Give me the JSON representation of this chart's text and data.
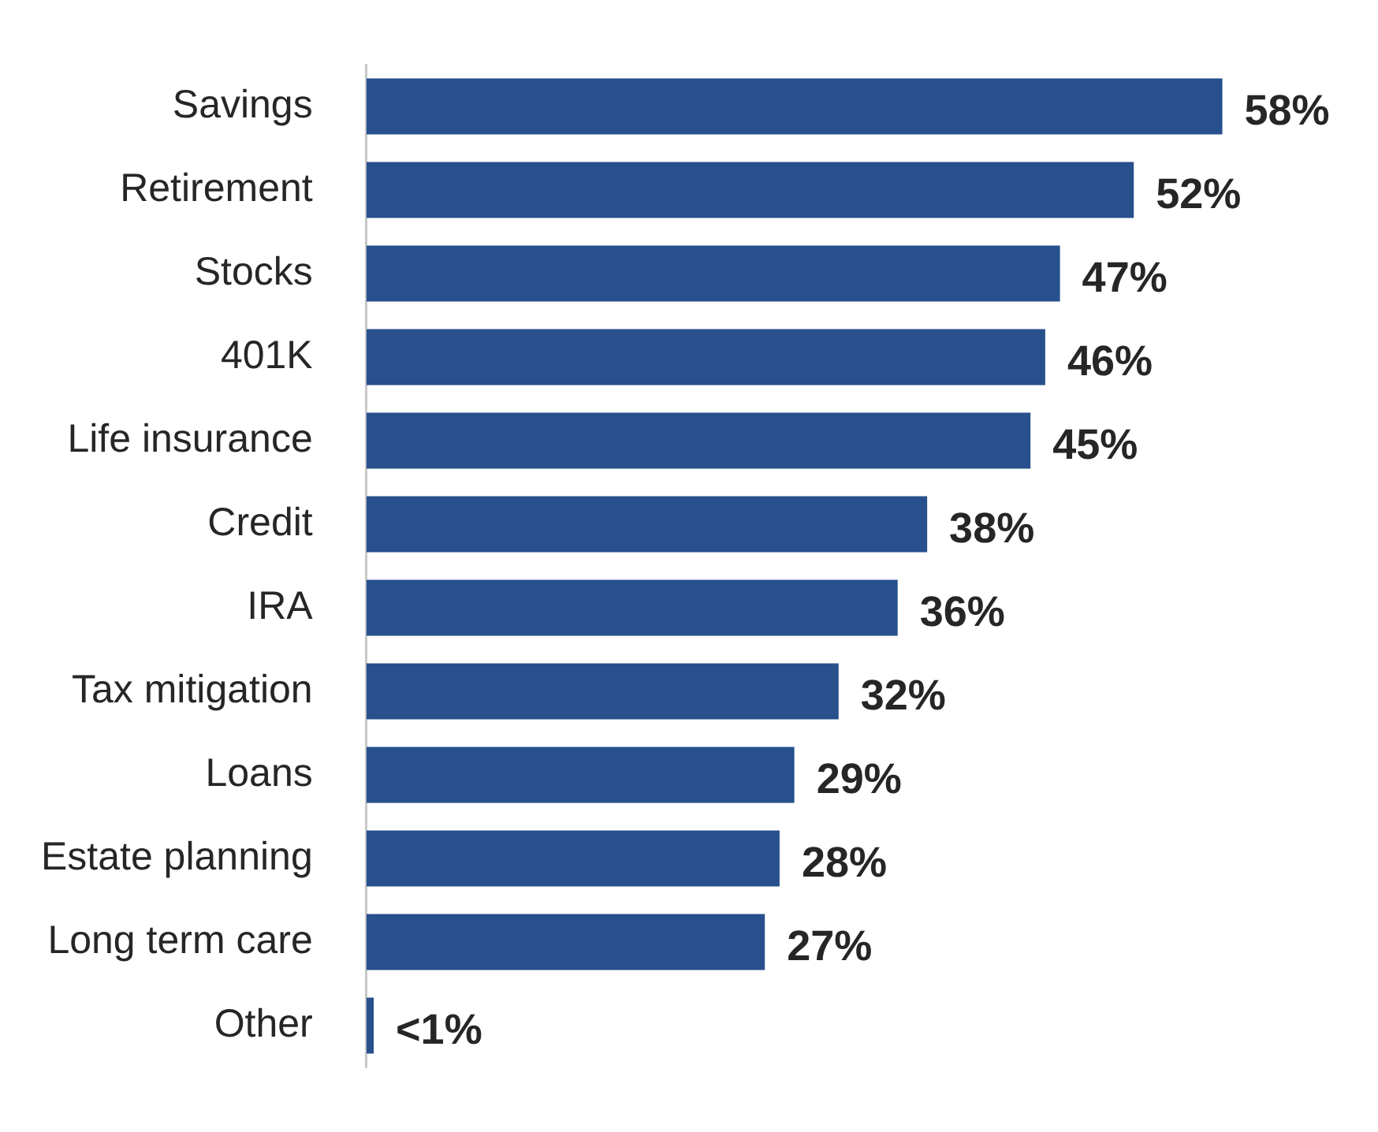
{
  "chart_data": {
    "type": "bar",
    "orientation": "horizontal",
    "categories": [
      "Savings",
      "Retirement",
      "Stocks",
      "401K",
      "Life insurance",
      "Credit",
      "IRA",
      "Tax mitigation",
      "Loans",
      "Estate planning",
      "Long term care",
      "Other"
    ],
    "values": [
      58,
      52,
      47,
      46,
      45,
      38,
      36,
      32,
      29,
      28,
      27,
      0.5
    ],
    "value_labels": [
      "58%",
      "52%",
      "47%",
      "46%",
      "45%",
      "38%",
      "36%",
      "32%",
      "29%",
      "28%",
      "27%",
      "<1%"
    ],
    "color": "#27508c",
    "grid": false,
    "legend": false
  }
}
